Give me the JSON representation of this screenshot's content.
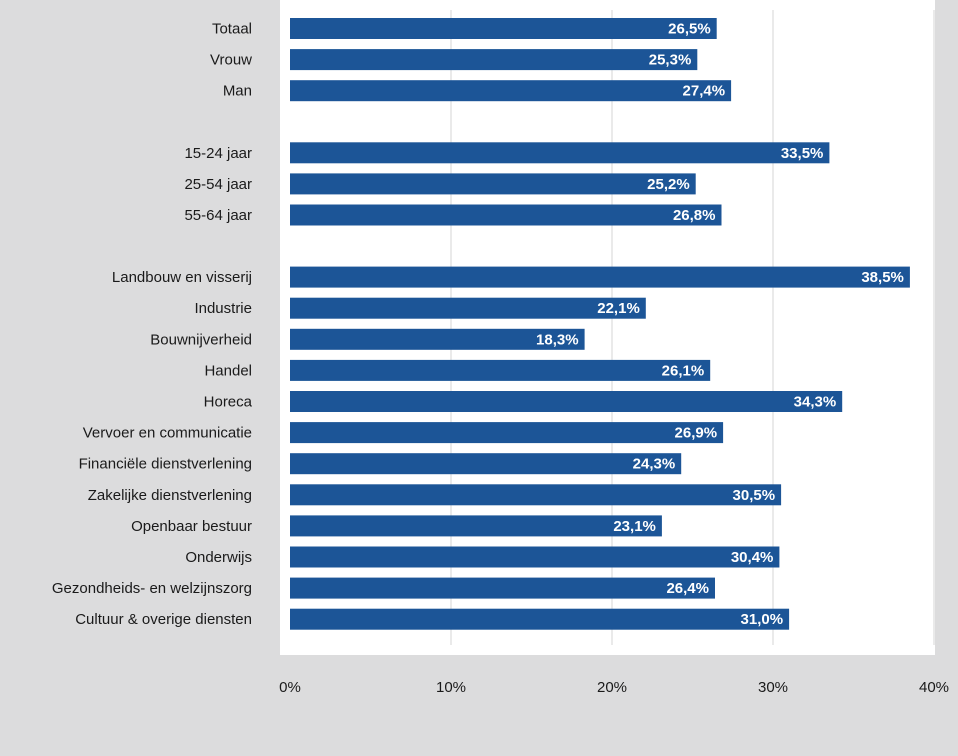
{
  "chart_data": {
    "type": "bar",
    "orientation": "horizontal",
    "title": "",
    "xlabel": "",
    "ylabel": "",
    "xlim": [
      0,
      40
    ],
    "grid": true,
    "legend": "none",
    "colors": {
      "bar": "#1c5597",
      "plot_bg": "#ffffff",
      "page_bg": "#dcdcdd",
      "grid": "#d6d6d6"
    },
    "tick_labels": [
      "0%",
      "10%",
      "20%",
      "30%",
      "40%"
    ],
    "groups": [
      {
        "categories": [
          "Totaal",
          "Vrouw",
          "Man"
        ],
        "values": [
          26.5,
          25.3,
          27.4
        ],
        "value_labels": [
          "26,5%",
          "25,3%",
          "27,4%"
        ]
      },
      {
        "categories": [
          "15-24 jaar",
          "25-54 jaar",
          "55-64 jaar"
        ],
        "values": [
          33.5,
          25.2,
          26.8
        ],
        "value_labels": [
          "33,5%",
          "25,2%",
          "26,8%"
        ]
      },
      {
        "categories": [
          "Landbouw en visserij",
          "Industrie",
          "Bouwnijverheid",
          "Handel",
          "Horeca",
          "Vervoer en communicatie",
          "Financiële dienstverlening",
          "Zakelijke dienstverlening",
          "Openbaar bestuur",
          "Onderwijs",
          "Gezondheids- en welzijnszorg",
          "Cultuur & overige diensten"
        ],
        "values": [
          38.5,
          22.1,
          18.3,
          26.1,
          34.3,
          26.9,
          24.3,
          30.5,
          23.1,
          30.4,
          26.4,
          31.0
        ],
        "value_labels": [
          "38,5%",
          "22,1%",
          "18,3%",
          "26,1%",
          "34,3%",
          "26,9%",
          "24,3%",
          "30,5%",
          "23,1%",
          "30,4%",
          "26,4%",
          "31,0%"
        ]
      }
    ]
  }
}
